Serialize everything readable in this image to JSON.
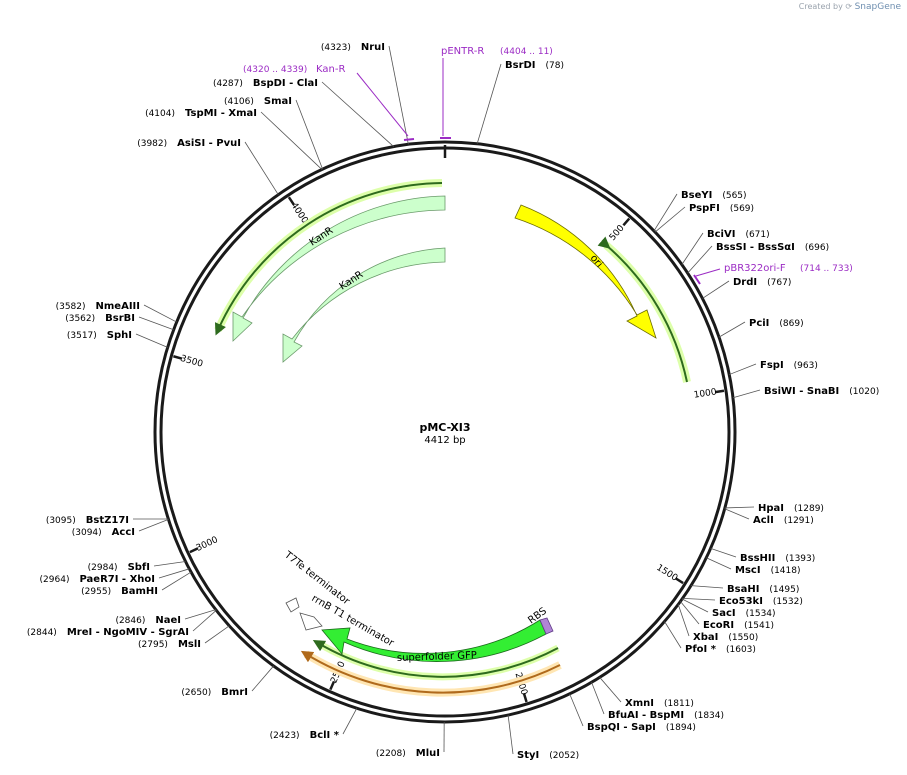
{
  "credit": {
    "prefix": "Created by",
    "brand": "SnapGene"
  },
  "plasmid": {
    "name": "pMC-XI3",
    "size": "4412 bp",
    "length": 4412
  },
  "ticks": [
    {
      "pos": 500,
      "label": "500"
    },
    {
      "pos": 1000,
      "label": "1000"
    },
    {
      "pos": 1500,
      "label": "1500"
    },
    {
      "pos": 2000,
      "label": "2000"
    },
    {
      "pos": 2500,
      "label": "2500"
    },
    {
      "pos": 3000,
      "label": "3000"
    },
    {
      "pos": 3500,
      "label": "3500"
    },
    {
      "pos": 4000,
      "label": "4000"
    }
  ],
  "enzymes": [
    {
      "name": "NruI",
      "pos": "(4323)",
      "bp": 4323
    },
    {
      "name": "BsrDI",
      "pos": "(78)",
      "bp": 78
    },
    {
      "name": "BspDI  - ClaI",
      "pos": "(4287)",
      "bp": 4287
    },
    {
      "name": "SmaI",
      "pos": "(4106)",
      "bp": 4106
    },
    {
      "name": "TspMI  - XmaI",
      "pos": "(4104)",
      "bp": 4104
    },
    {
      "name": "AsiSI  - PvuI",
      "pos": "(3982)",
      "bp": 3982
    },
    {
      "name": "BseYI",
      "pos": "(565)",
      "bp": 565
    },
    {
      "name": "PspFI",
      "pos": "(569)",
      "bp": 569
    },
    {
      "name": "BciVI",
      "pos": "(671)",
      "bp": 671
    },
    {
      "name": "BssSI  - BssSαI",
      "pos": "(696)",
      "bp": 696
    },
    {
      "name": "DrdI",
      "pos": "(767)",
      "bp": 767
    },
    {
      "name": "PciI",
      "pos": "(869)",
      "bp": 869
    },
    {
      "name": "FspI",
      "pos": "(963)",
      "bp": 963
    },
    {
      "name": "BsiWI  - SnaBI",
      "pos": "(1020)",
      "bp": 1020
    },
    {
      "name": "NmeAIII",
      "pos": "(3582)",
      "bp": 3582
    },
    {
      "name": "BsrBI",
      "pos": "(3562)",
      "bp": 3562
    },
    {
      "name": "SphI",
      "pos": "(3517)",
      "bp": 3517
    },
    {
      "name": "HpaI",
      "pos": "(1289)",
      "bp": 1289
    },
    {
      "name": "AclI",
      "pos": "(1291)",
      "bp": 1291
    },
    {
      "name": "BssHII",
      "pos": "(1393)",
      "bp": 1393
    },
    {
      "name": "MscI",
      "pos": "(1418)",
      "bp": 1418
    },
    {
      "name": "BsaHI",
      "pos": "(1495)",
      "bp": 1495
    },
    {
      "name": "Eco53kI",
      "pos": "(1532)",
      "bp": 1532
    },
    {
      "name": "SacI",
      "pos": "(1534)",
      "bp": 1534
    },
    {
      "name": "EcoRI",
      "pos": "(1541)",
      "bp": 1541
    },
    {
      "name": "XbaI",
      "pos": "(1550)",
      "bp": 1550
    },
    {
      "name": "PfoI *",
      "pos": "(1603)",
      "bp": 1603
    },
    {
      "name": "BstZ17I",
      "pos": "(3095)",
      "bp": 3095
    },
    {
      "name": "AccI",
      "pos": "(3094)",
      "bp": 3094
    },
    {
      "name": "SbfI",
      "pos": "(2984)",
      "bp": 2984
    },
    {
      "name": "PaeR7I  - XhoI",
      "pos": "(2964)",
      "bp": 2964
    },
    {
      "name": "BamHI",
      "pos": "(2955)",
      "bp": 2955
    },
    {
      "name": "NaeI",
      "pos": "(2846)",
      "bp": 2846
    },
    {
      "name": "MreI  - NgoMIV  - SgrAI",
      "pos": "(2844)",
      "bp": 2844
    },
    {
      "name": "MslI",
      "pos": "(2795)",
      "bp": 2795
    },
    {
      "name": "BmrI",
      "pos": "(2650)",
      "bp": 2650
    },
    {
      "name": "BclI *",
      "pos": "(2423)",
      "bp": 2423
    },
    {
      "name": "MluI",
      "pos": "(2208)",
      "bp": 2208
    },
    {
      "name": "StyI",
      "pos": "(2052)",
      "bp": 2052
    },
    {
      "name": "BspQI  - SapI",
      "pos": "(1894)",
      "bp": 1894
    },
    {
      "name": "BfuAI  - BspMI",
      "pos": "(1834)",
      "bp": 1834
    },
    {
      "name": "XmnI",
      "pos": "(1811)",
      "bp": 1811
    }
  ],
  "primers": [
    {
      "name": "pENTR-R",
      "pos": "(4404 .. 11)"
    },
    {
      "name": "Kan-R",
      "pos": "(4320 .. 4339)"
    },
    {
      "name": "pBR322ori-F",
      "pos": "(714 .. 733)"
    }
  ],
  "features": [
    {
      "name": "ori",
      "color": "#ffff00"
    },
    {
      "name": "KanR",
      "color": "#ccffcc"
    },
    {
      "name": "KanR",
      "color": "#ccffcc"
    },
    {
      "name": "superfolder GFP",
      "color": "#33ee33"
    },
    {
      "name": "RBS",
      "color": "#b084d6"
    },
    {
      "name": "rrnB T1 terminator",
      "color": "#ffffff"
    },
    {
      "name": "T7Te terminator",
      "color": "#ffffff"
    }
  ],
  "colors": {
    "backbone": "#1a1a1a",
    "primer": "#9b2bc4",
    "orf_band": "#2e8b2e",
    "orf_halo": "#ddffaa",
    "insert_band": "#b06a1c",
    "insert_halo": "#ffe6b3"
  }
}
